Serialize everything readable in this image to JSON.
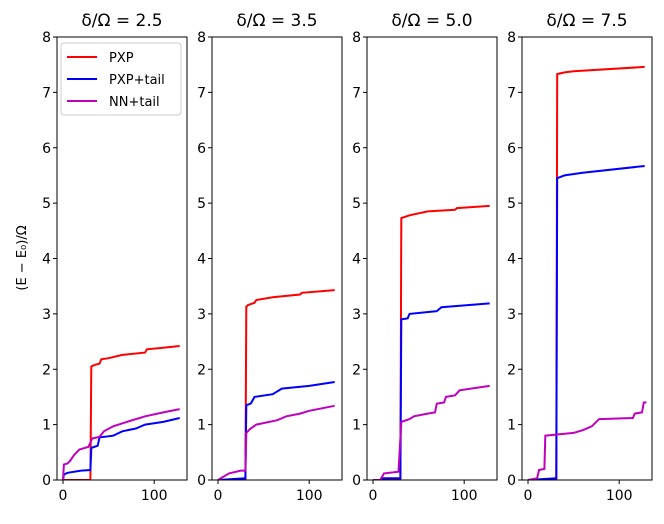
{
  "chart_data": [
    {
      "type": "line",
      "title": "δ/Ω = 2.5",
      "ylabel": "(E − E₀)/Ω",
      "xlim": [
        -6.6,
        136
      ],
      "ylim": [
        0,
        8
      ],
      "xticks": [
        0,
        100
      ],
      "yticks": [
        0,
        1,
        2,
        3,
        4,
        5,
        6,
        7,
        8
      ],
      "grid": false,
      "legend": "top-left",
      "series": [
        {
          "name": "PXP",
          "color": "#ff0000",
          "points": [
            [
              0,
              0
            ],
            [
              30,
              0
            ],
            [
              31,
              2.05
            ],
            [
              35,
              2.08
            ],
            [
              40,
              2.1
            ],
            [
              42,
              2.18
            ],
            [
              50,
              2.2
            ],
            [
              65,
              2.26
            ],
            [
              90,
              2.3
            ],
            [
              92,
              2.36
            ],
            [
              110,
              2.39
            ],
            [
              128,
              2.42
            ]
          ]
        },
        {
          "name": "PXP+tail",
          "color": "#0000ff",
          "points": [
            [
              0,
              0
            ],
            [
              1,
              0.1
            ],
            [
              5,
              0.13
            ],
            [
              20,
              0.17
            ],
            [
              30,
              0.18
            ],
            [
              31,
              0.58
            ],
            [
              38,
              0.62
            ],
            [
              40,
              0.77
            ],
            [
              55,
              0.8
            ],
            [
              65,
              0.88
            ],
            [
              80,
              0.93
            ],
            [
              90,
              1.0
            ],
            [
              110,
              1.05
            ],
            [
              128,
              1.12
            ]
          ]
        },
        {
          "name": "NN+tail",
          "color": "#bf00bf",
          "points": [
            [
              0,
              0
            ],
            [
              1,
              0.28
            ],
            [
              5,
              0.3
            ],
            [
              8,
              0.35
            ],
            [
              12,
              0.45
            ],
            [
              18,
              0.55
            ],
            [
              28,
              0.6
            ],
            [
              32,
              0.75
            ],
            [
              40,
              0.78
            ],
            [
              45,
              0.88
            ],
            [
              55,
              0.97
            ],
            [
              70,
              1.05
            ],
            [
              90,
              1.15
            ],
            [
              110,
              1.22
            ],
            [
              128,
              1.28
            ]
          ]
        }
      ]
    },
    {
      "type": "line",
      "title": "δ/Ω = 3.5",
      "xlim": [
        -6.6,
        136
      ],
      "ylim": [
        0,
        8
      ],
      "xticks": [
        0,
        100
      ],
      "yticks": [
        0,
        1,
        2,
        3,
        4,
        5,
        6,
        7,
        8
      ],
      "grid": false,
      "series": [
        {
          "color": "#ff0000",
          "points": [
            [
              0,
              0
            ],
            [
              30,
              0
            ],
            [
              31,
              3.13
            ],
            [
              33,
              3.16
            ],
            [
              40,
              3.2
            ],
            [
              42,
              3.25
            ],
            [
              60,
              3.3
            ],
            [
              90,
              3.35
            ],
            [
              92,
              3.38
            ],
            [
              128,
              3.43
            ]
          ]
        },
        {
          "color": "#0000ff",
          "points": [
            [
              0,
              0
            ],
            [
              30,
              0.03
            ],
            [
              31,
              1.35
            ],
            [
              36,
              1.38
            ],
            [
              40,
              1.5
            ],
            [
              60,
              1.55
            ],
            [
              70,
              1.65
            ],
            [
              100,
              1.7
            ],
            [
              128,
              1.77
            ]
          ]
        },
        {
          "color": "#bf00bf",
          "points": [
            [
              0,
              0
            ],
            [
              5,
              0.05
            ],
            [
              12,
              0.12
            ],
            [
              25,
              0.17
            ],
            [
              30,
              0.17
            ],
            [
              31,
              0.85
            ],
            [
              35,
              0.92
            ],
            [
              42,
              1.0
            ],
            [
              65,
              1.08
            ],
            [
              75,
              1.15
            ],
            [
              90,
              1.2
            ],
            [
              100,
              1.25
            ],
            [
              128,
              1.34
            ]
          ]
        }
      ]
    },
    {
      "type": "line",
      "title": "δ/Ω = 5.0",
      "xlim": [
        -6.6,
        136
      ],
      "ylim": [
        0,
        8
      ],
      "xticks": [
        0,
        100
      ],
      "yticks": [
        0,
        1,
        2,
        3,
        4,
        5,
        6,
        7,
        8
      ],
      "grid": false,
      "series": [
        {
          "color": "#ff0000",
          "points": [
            [
              0,
              0
            ],
            [
              30,
              0
            ],
            [
              31,
              4.73
            ],
            [
              40,
              4.78
            ],
            [
              60,
              4.85
            ],
            [
              90,
              4.88
            ],
            [
              92,
              4.91
            ],
            [
              128,
              4.95
            ]
          ]
        },
        {
          "color": "#0000ff",
          "points": [
            [
              0,
              0
            ],
            [
              10,
              0
            ],
            [
              11,
              0.03
            ],
            [
              30,
              0.03
            ],
            [
              31,
              2.9
            ],
            [
              38,
              2.92
            ],
            [
              40,
              3.0
            ],
            [
              70,
              3.05
            ],
            [
              75,
              3.12
            ],
            [
              128,
              3.19
            ]
          ]
        },
        {
          "color": "#bf00bf",
          "points": [
            [
              0,
              0
            ],
            [
              8,
              0
            ],
            [
              12,
              0.12
            ],
            [
              28,
              0.15
            ],
            [
              31,
              1.05
            ],
            [
              40,
              1.1
            ],
            [
              45,
              1.15
            ],
            [
              60,
              1.2
            ],
            [
              68,
              1.22
            ],
            [
              70,
              1.38
            ],
            [
              78,
              1.4
            ],
            [
              80,
              1.5
            ],
            [
              90,
              1.53
            ],
            [
              95,
              1.62
            ],
            [
              128,
              1.7
            ]
          ]
        }
      ]
    },
    {
      "type": "line",
      "title": "δ/Ω = 7.5",
      "xlim": [
        -6.6,
        136
      ],
      "ylim": [
        0,
        8
      ],
      "xticks": [
        0,
        100
      ],
      "yticks": [
        0,
        1,
        2,
        3,
        4,
        5,
        6,
        7,
        8
      ],
      "grid": false,
      "series": [
        {
          "color": "#ff0000",
          "points": [
            [
              0,
              0
            ],
            [
              31,
              0
            ],
            [
              32,
              7.33
            ],
            [
              40,
              7.36
            ],
            [
              50,
              7.38
            ],
            [
              128,
              7.46
            ]
          ]
        },
        {
          "color": "#0000ff",
          "points": [
            [
              0,
              0
            ],
            [
              31,
              0.03
            ],
            [
              32,
              5.45
            ],
            [
              40,
              5.5
            ],
            [
              60,
              5.55
            ],
            [
              128,
              5.67
            ]
          ]
        },
        {
          "color": "#bf00bf",
          "points": [
            [
              0,
              0
            ],
            [
              10,
              0.03
            ],
            [
              12,
              0.18
            ],
            [
              18,
              0.2
            ],
            [
              19,
              0.8
            ],
            [
              30,
              0.82
            ],
            [
              50,
              0.85
            ],
            [
              60,
              0.9
            ],
            [
              70,
              0.97
            ],
            [
              78,
              1.1
            ],
            [
              115,
              1.12
            ],
            [
              117,
              1.2
            ],
            [
              125,
              1.22
            ],
            [
              127,
              1.4
            ],
            [
              130,
              1.4
            ]
          ]
        }
      ]
    }
  ]
}
